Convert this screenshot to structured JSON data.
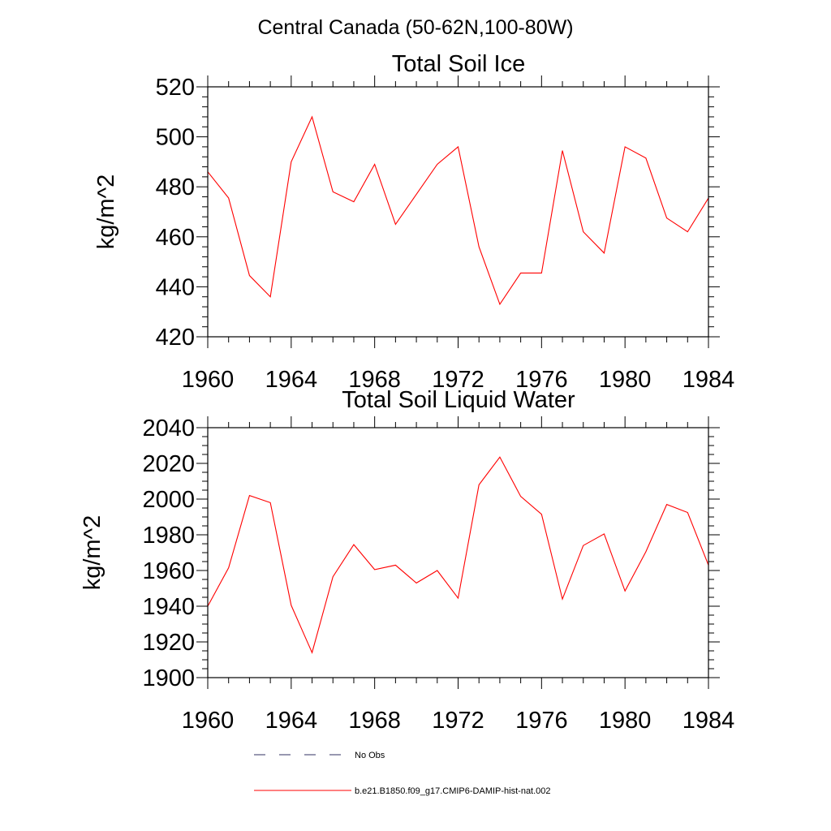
{
  "suptitle": "Central Canada (50-62N,100-80W)",
  "legend": {
    "items": [
      {
        "label": "No Obs",
        "color": "#303060",
        "style": "dashed"
      },
      {
        "label": "b.e21.B1850.f09_g17.CMIP6-DAMIP-hist-nat.002",
        "color": "#ff0000",
        "style": "solid"
      }
    ]
  },
  "chart_data": [
    {
      "type": "line",
      "title": "Total Soil Ice",
      "xlabel": "",
      "ylabel": "kg/m^2",
      "xlim": [
        1960,
        1984
      ],
      "ylim": [
        420,
        520
      ],
      "xticks": [
        "1960",
        "1964",
        "1968",
        "1972",
        "1976",
        "1980",
        "1984"
      ],
      "yticks": [
        "420",
        "440",
        "460",
        "480",
        "500",
        "520"
      ],
      "grid": false,
      "series": [
        {
          "name": "b.e21.B1850.f09_g17.CMIP6-DAMIP-hist-nat.002",
          "color": "#ff0000",
          "x": [
            1960,
            1961,
            1962,
            1963,
            1964,
            1965,
            1966,
            1967,
            1968,
            1969,
            1970,
            1971,
            1972,
            1973,
            1974,
            1975,
            1976,
            1977,
            1978,
            1979,
            1980,
            1981,
            1982,
            1983,
            1984
          ],
          "y": [
            486,
            475.5,
            444.5,
            436,
            490,
            508,
            478,
            474,
            489,
            465,
            477,
            489,
            496,
            456,
            433,
            445.5,
            445.5,
            494.5,
            462,
            453.5,
            496,
            491.5,
            467.5,
            462,
            475.5
          ]
        }
      ]
    },
    {
      "type": "line",
      "title": "Total Soil Liquid Water",
      "xlabel": "",
      "ylabel": "kg/m^2",
      "xlim": [
        1960,
        1984
      ],
      "ylim": [
        1900,
        2040
      ],
      "xticks": [
        "1960",
        "1964",
        "1968",
        "1972",
        "1976",
        "1980",
        "1984"
      ],
      "yticks": [
        "1900",
        "1920",
        "1940",
        "1960",
        "1980",
        "2000",
        "2020",
        "2040"
      ],
      "grid": false,
      "series": [
        {
          "name": "b.e21.B1850.f09_g17.CMIP6-DAMIP-hist-nat.002",
          "color": "#ff0000",
          "x": [
            1960,
            1961,
            1962,
            1963,
            1964,
            1965,
            1966,
            1967,
            1968,
            1969,
            1970,
            1971,
            1972,
            1973,
            1974,
            1975,
            1976,
            1977,
            1978,
            1979,
            1980,
            1981,
            1982,
            1983,
            1984
          ],
          "y": [
            1940,
            1961.5,
            2002,
            1998,
            1940.5,
            1914,
            1956.5,
            1974.5,
            1960.5,
            1963,
            1953,
            1960,
            1944.5,
            2008,
            2023.5,
            2001.5,
            1991.5,
            1944,
            1974,
            1980.5,
            1948.5,
            1970.5,
            1997,
            1992.5,
            1963
          ]
        }
      ]
    }
  ]
}
